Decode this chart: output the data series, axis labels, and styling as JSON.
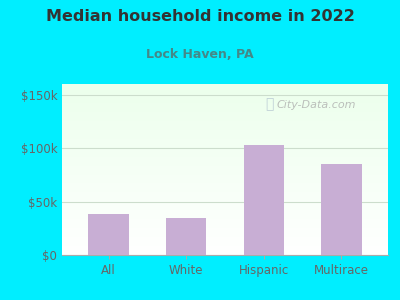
{
  "title": "Median household income in 2022",
  "subtitle": "Lock Haven, PA",
  "categories": [
    "All",
    "White",
    "Hispanic",
    "Multirace"
  ],
  "values": [
    38000,
    35000,
    103000,
    85000
  ],
  "bar_color": "#c8aed4",
  "background_color": "#00eeff",
  "title_color": "#333333",
  "subtitle_color": "#448888",
  "tick_label_color": "#666666",
  "ylim": [
    0,
    160000
  ],
  "yticks": [
    0,
    50000,
    100000,
    150000
  ],
  "ytick_labels": [
    "$0",
    "$50k",
    "$100k",
    "$150k"
  ],
  "watermark": "City-Data.com",
  "watermark_color": "#aaaaaa",
  "grid_color": "#ccddcc"
}
